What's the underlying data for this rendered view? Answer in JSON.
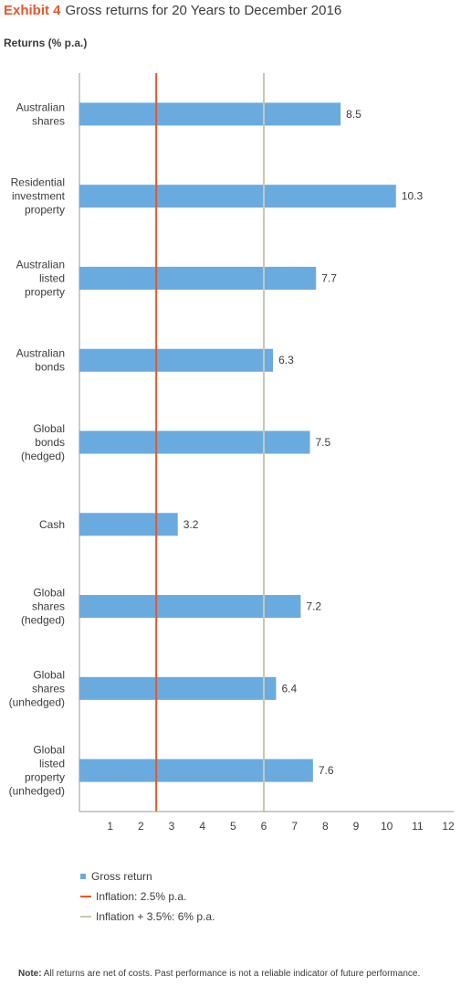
{
  "header": {
    "exhibit": "Exhibit 4",
    "title": "Gross returns for 20 Years to December 2016",
    "subtitle": "Returns (% p.a.)"
  },
  "chart_data": {
    "type": "bar",
    "orientation": "horizontal",
    "categories": [
      [
        "Australian",
        "shares"
      ],
      [
        "Residential",
        "investment",
        "property"
      ],
      [
        "Australian",
        "listed",
        "property"
      ],
      [
        "Australian",
        "bonds"
      ],
      [
        "Global",
        "bonds",
        "(hedged)"
      ],
      [
        "Cash"
      ],
      [
        "Global",
        "shares",
        "(hedged)"
      ],
      [
        "Global",
        "shares",
        "(unhedged)"
      ],
      [
        "Global",
        "listed",
        "property",
        "(unhedged)"
      ]
    ],
    "series": [
      {
        "name": "Gross return",
        "values": [
          8.5,
          10.3,
          7.7,
          6.3,
          7.5,
          3.2,
          7.2,
          6.4,
          7.6
        ]
      }
    ],
    "value_labels": [
      "8.5",
      "10.3",
      "7.7",
      "6.3",
      "7.5",
      "3.2",
      "7.2",
      "6.4",
      "7.6"
    ],
    "reference_lines": [
      {
        "name": "Inflation: 2.5% p.a.",
        "value": 2.5,
        "color": "#e8562a"
      },
      {
        "name": "Inflation + 3.5%: 6% p.a.",
        "value": 6,
        "color": "#c8c8b4"
      }
    ],
    "xlim": [
      0,
      12
    ],
    "xticks": [
      "1",
      "2",
      "3",
      "4",
      "5",
      "6",
      "7",
      "8",
      "9",
      "10",
      "11",
      "12"
    ],
    "grid": false,
    "legend_position": "bottom-left",
    "colors": {
      "bar": "#6aabdf",
      "axis": "#9a9a9a",
      "text": "#3c3c3c",
      "exhibit": "#e8562a"
    }
  },
  "legend": {
    "items": [
      {
        "label": "Gross return"
      },
      {
        "label": "Inflation: 2.5% p.a."
      },
      {
        "label": "Inflation + 3.5%: 6% p.a."
      }
    ]
  },
  "note": {
    "label": "Note:",
    "text": "All returns are net of costs. Past performance is not a reliable indicator of future performance."
  }
}
